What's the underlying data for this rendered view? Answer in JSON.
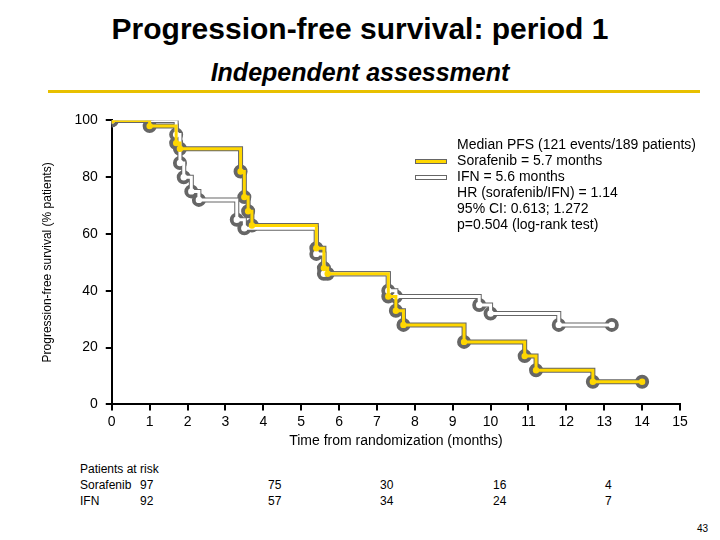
{
  "chart_data": {
    "type": "line",
    "title": "Progression-free survival: period 1",
    "subtitle": "Independent assessment",
    "x_label": "Time from randomization (months)",
    "y_label": "Progression-free survival (% patients)",
    "xlim": [
      0,
      15
    ],
    "xticks": [
      0,
      1,
      2,
      3,
      4,
      5,
      6,
      7,
      8,
      9,
      10,
      11,
      12,
      13,
      14,
      15
    ],
    "ylim": [
      0,
      100
    ],
    "yticks": [
      0,
      20,
      40,
      60,
      80,
      100
    ],
    "grid": false,
    "legend": "upper right",
    "annotations": [
      "Median PFS (121 events/189 patients)",
      "HR (sorafenib/IFN) = 1.14",
      "95% CI: 0.613; 1.272",
      "p=0.504 (log-rank test)"
    ],
    "series": [
      {
        "name": "Sorafenib = 5.7 months",
        "color": "#ffd700",
        "marker": "circle",
        "line_style": "step",
        "x": [
          0,
          1.0,
          1.7,
          1.8,
          3.4,
          3.5,
          3.6,
          3.7,
          5.4,
          5.6,
          5.7,
          7.3,
          7.5,
          7.7,
          9.3,
          10.9,
          11.2,
          12.7,
          14.0
        ],
        "values": [
          100,
          98,
          92,
          90,
          82,
          73,
          68,
          63,
          55,
          48,
          46,
          38,
          33,
          28,
          22,
          17,
          12,
          8,
          8
        ]
      },
      {
        "name": "IFN = 5.6 months",
        "color": "#ffffff",
        "marker": "circle",
        "line_style": "step",
        "x": [
          0,
          1.7,
          1.8,
          1.9,
          2.1,
          2.3,
          3.3,
          3.5,
          5.4,
          5.6,
          7.3,
          7.5,
          9.7,
          10.0,
          11.8,
          13.2
        ],
        "values": [
          100,
          95,
          85,
          80,
          75,
          72,
          65,
          62,
          53,
          46,
          40,
          38,
          35,
          32,
          28,
          28
        ]
      }
    ]
  },
  "risk_table": {
    "title": "Patients at risk",
    "rows": [
      {
        "name": "Sorafenib",
        "values": [
          97,
          75,
          30,
          16,
          4
        ]
      },
      {
        "name": "IFN",
        "values": [
          92,
          57,
          34,
          24,
          7
        ]
      }
    ]
  },
  "page_number": 43
}
